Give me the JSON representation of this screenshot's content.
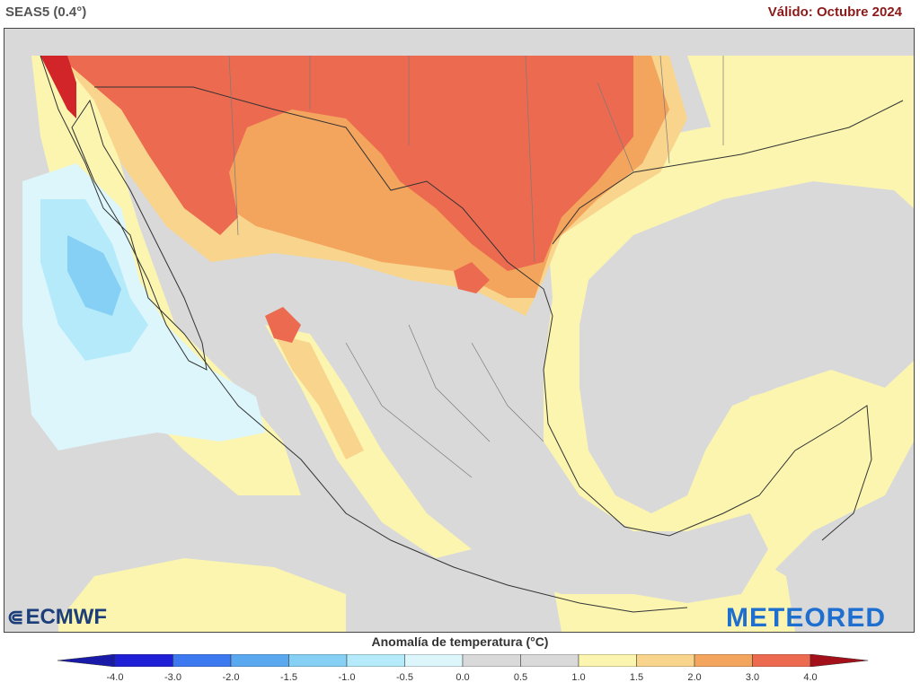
{
  "header": {
    "model": "SEAS5 (0.4°)",
    "valid": "Válido: Octubre 2024"
  },
  "logos": {
    "left": "ECMWF",
    "right": "METEORED"
  },
  "legend": {
    "title": "Anomalía de temperatura (°C)",
    "ticks": [
      "-4.0",
      "-3.0",
      "-2.0",
      "-1.5",
      "-1.0",
      "-0.5",
      "0.0",
      "0.5",
      "1.0",
      "1.5",
      "2.0",
      "3.0",
      "4.0"
    ],
    "colors": [
      "#1f1fd6",
      "#3c78f0",
      "#5aa8f0",
      "#86d0f5",
      "#b5eafa",
      "#dcf6fb",
      "#d9d9d9",
      "#d9d9d9",
      "#fbf5b0",
      "#f9d48c",
      "#f3a45d",
      "#ec6a50",
      "#d1252a"
    ],
    "under_color": "#1a1aa8",
    "over_color": "#a4101a"
  },
  "map_colors": {
    "background_neutral": "#d9d9d9",
    "anom_0_5_1_0": "#fbf5b0",
    "anom_1_0_1_5": "#f9d48c",
    "anom_1_5_2_0": "#f3a45d",
    "anom_2_0_3_0": "#ec6a50",
    "anom_3_0_4_0": "#d1252a",
    "anom_m0_5_0_0": "#dcf6fb",
    "anom_m1_0_m0_5": "#b5eafa",
    "anom_m1_5_m1_0": "#86d0f5",
    "borders": "#333333",
    "state_lines": "#7a7a7a"
  }
}
